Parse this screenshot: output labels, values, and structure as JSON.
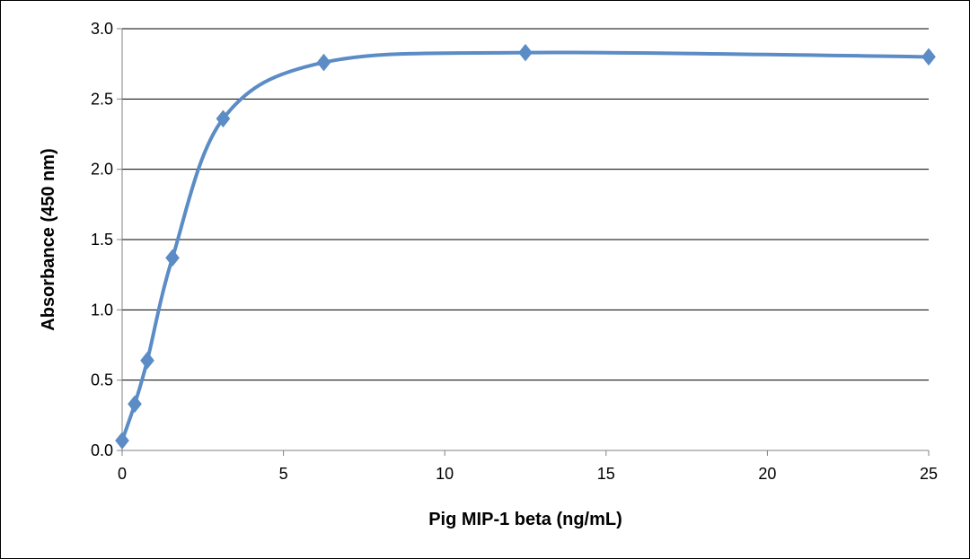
{
  "chart_data": {
    "type": "line",
    "title": "",
    "xlabel": "Pig MIP-1 beta (ng/mL)",
    "ylabel": "Absorbance (450 nm)",
    "xlim": [
      0,
      25
    ],
    "ylim": [
      0,
      3.0
    ],
    "x_ticks": [
      0,
      5,
      10,
      15,
      20,
      25
    ],
    "y_ticks": [
      0.0,
      0.5,
      1.0,
      1.5,
      2.0,
      2.5,
      3.0
    ],
    "x_tick_labels": [
      "0",
      "5",
      "10",
      "15",
      "20",
      "25"
    ],
    "y_tick_labels": [
      "0.0",
      "0.5",
      "1.0",
      "1.5",
      "2.0",
      "2.5",
      "3.0"
    ],
    "grid": "horizontal",
    "legend": "none",
    "series": [
      {
        "color": "#5B8CC5",
        "marker": "diamond",
        "smooth": true,
        "x": [
          0,
          0.39,
          0.78,
          1.56,
          3.13,
          6.25,
          12.5,
          25
        ],
        "y": [
          0.07,
          0.33,
          0.64,
          1.37,
          2.36,
          2.76,
          2.83,
          2.8
        ]
      }
    ]
  }
}
